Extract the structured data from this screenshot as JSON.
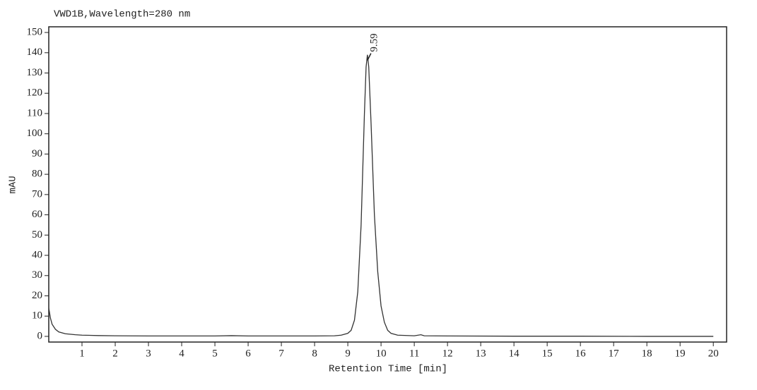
{
  "chart_data": {
    "type": "line",
    "title": "VWD1B,Wavelength=280 nm",
    "xlabel": "Retention Time [min]",
    "ylabel": "mAU",
    "x": [
      0,
      0.05,
      0.1,
      0.2,
      0.3,
      0.5,
      0.8,
      1,
      1.5,
      2,
      3,
      4,
      5,
      5.5,
      6,
      7,
      8,
      8.6,
      8.8,
      9.0,
      9.1,
      9.2,
      9.3,
      9.4,
      9.5,
      9.55,
      9.59,
      9.63,
      9.7,
      9.8,
      9.9,
      10.0,
      10.1,
      10.2,
      10.3,
      10.5,
      11.0,
      11.2,
      11.3,
      12,
      14,
      16,
      18,
      20
    ],
    "values": [
      14,
      9,
      6,
      3.5,
      2.2,
      1.3,
      0.8,
      0.6,
      0.4,
      0.3,
      0.2,
      0.2,
      0.2,
      0.35,
      0.2,
      0.2,
      0.2,
      0.3,
      0.6,
      1.5,
      3,
      8,
      22,
      55,
      110,
      133,
      139,
      133,
      105,
      60,
      32,
      15,
      7,
      3,
      1.5,
      0.6,
      0.3,
      0.8,
      0.3,
      0.2,
      0.1,
      0.1,
      0,
      0
    ],
    "color": "#333333",
    "xlim": [
      0,
      20.4
    ],
    "ylim": [
      -2.8,
      152.8
    ],
    "xticks": [
      1,
      2,
      3,
      4,
      5,
      6,
      7,
      8,
      9,
      10,
      11,
      12,
      13,
      14,
      15,
      16,
      17,
      18,
      19,
      20
    ],
    "yticks": [
      0,
      10,
      20,
      30,
      40,
      50,
      60,
      70,
      80,
      90,
      100,
      110,
      120,
      130,
      140,
      150
    ],
    "annotations": [
      {
        "text": "9.59",
        "x": 9.59,
        "y": 139
      }
    ]
  }
}
